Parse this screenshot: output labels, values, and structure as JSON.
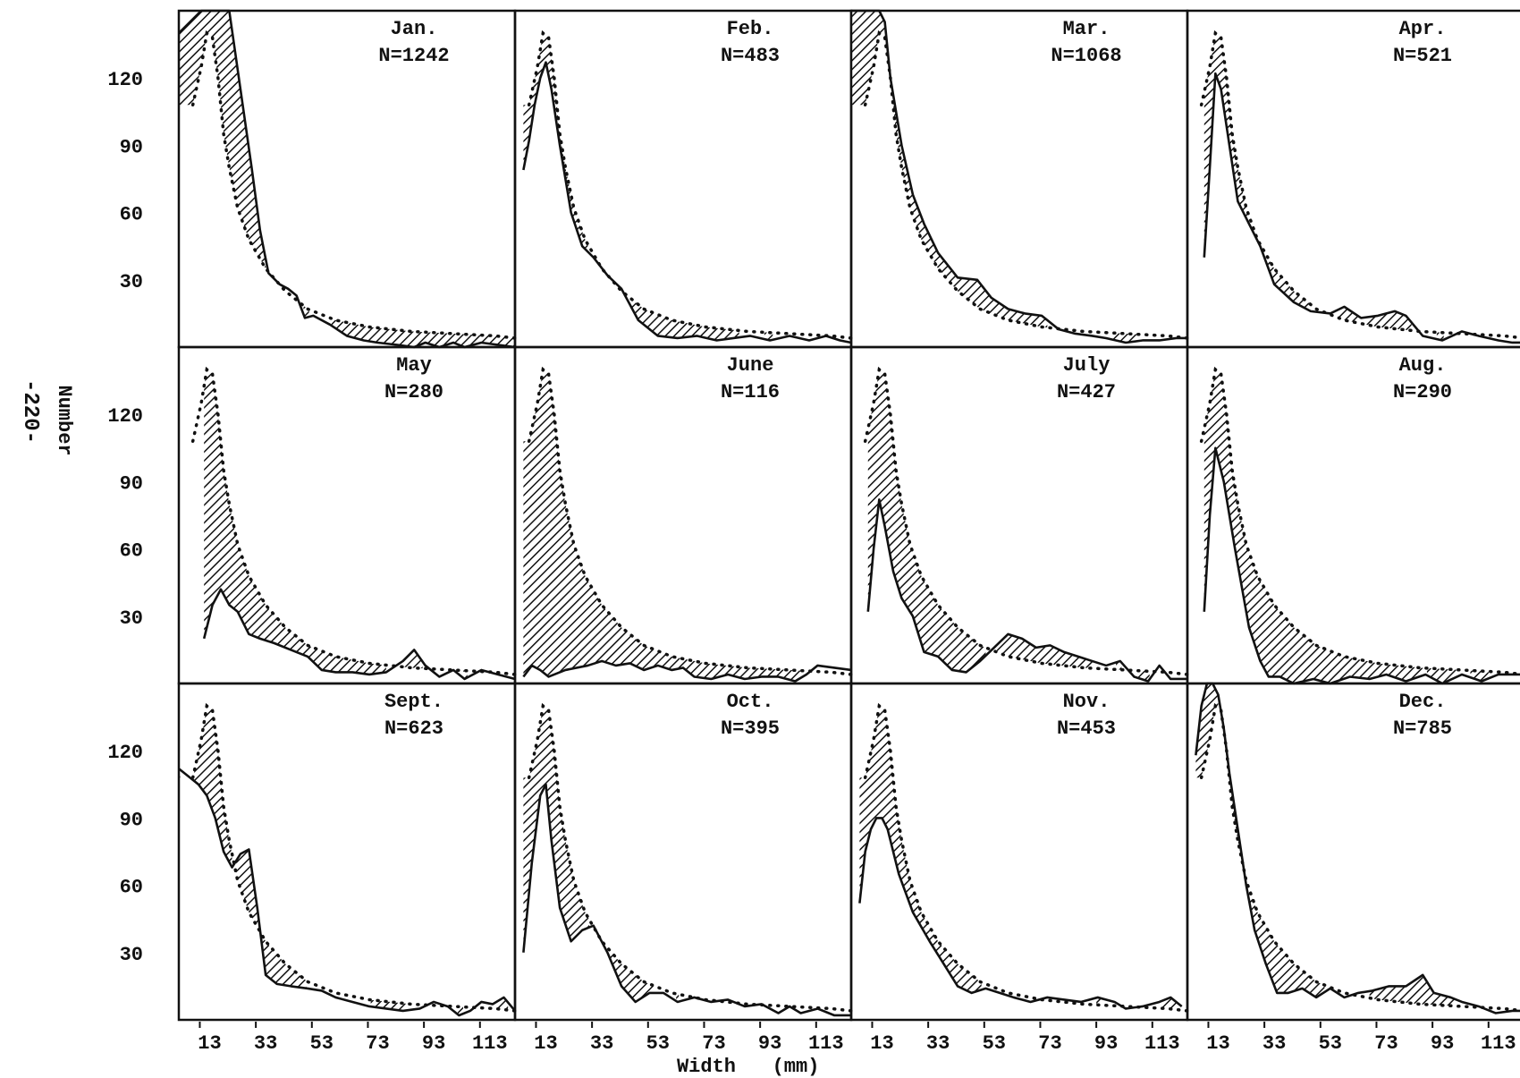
{
  "page_number": "-220-",
  "axis_labels": {
    "y": "Number",
    "x": "Width",
    "x_unit": "(mm)"
  },
  "y_ticks": [
    "30",
    "60",
    "90",
    "120"
  ],
  "x_ticks": [
    "13",
    "33",
    "53",
    "73",
    "93",
    "113"
  ],
  "chart_data": {
    "type": "line",
    "layout": "small multiples, 3 rows x 4 columns",
    "xlabel": "Width (mm)",
    "ylabel": "Number",
    "ylim": [
      0,
      150
    ],
    "xlim": [
      2,
      122
    ],
    "y_ticks": [
      30,
      60,
      90,
      120
    ],
    "x_ticks": [
      13,
      33,
      53,
      73,
      93,
      113
    ],
    "style": {
      "monthly": "solid line",
      "reference": "dotted line",
      "difference": "hatched area"
    },
    "reference_curve": {
      "x": [
        7,
        10,
        12,
        14,
        16,
        18,
        20,
        23,
        27,
        33,
        40,
        48,
        58,
        70,
        85,
        100,
        115,
        122
      ],
      "y": [
        108,
        125,
        140,
        138,
        120,
        95,
        80,
        62,
        48,
        35,
        25,
        17,
        12,
        9,
        7,
        6,
        5,
        4
      ]
    },
    "panels": [
      {
        "month": "Jan.",
        "n": "N=1242",
        "x": [
          2,
          6,
          10,
          14,
          17,
          20,
          24,
          28,
          31,
          34,
          38,
          41,
          44,
          47,
          50,
          56,
          62,
          68,
          73,
          80,
          86,
          90,
          95,
          100,
          104,
          110,
          116,
          122
        ],
        "y": [
          140,
          145,
          150,
          150,
          150,
          150,
          115,
          80,
          52,
          33,
          28,
          26,
          23,
          13,
          14,
          10,
          5,
          3,
          2,
          1,
          0,
          2,
          0,
          2,
          0,
          2,
          1,
          0
        ]
      },
      {
        "month": "Feb.",
        "n": "N=483",
        "x": [
          5,
          7,
          9,
          11,
          13,
          15,
          18,
          22,
          26,
          30,
          35,
          40,
          46,
          53,
          60,
          67,
          74,
          80,
          86,
          93,
          100,
          107,
          113,
          118,
          122
        ],
        "y": [
          79,
          92,
          108,
          120,
          127,
          115,
          90,
          60,
          45,
          40,
          32,
          26,
          12,
          5,
          4,
          5,
          3,
          4,
          5,
          3,
          5,
          3,
          5,
          3,
          2
        ]
      },
      {
        "month": "Mar.",
        "n": "N=1068",
        "x": [
          2,
          8,
          12,
          14,
          16,
          20,
          24,
          28,
          33,
          40,
          47,
          52,
          58,
          64,
          70,
          76,
          82,
          88,
          93,
          100,
          106,
          112,
          118,
          122
        ],
        "y": [
          150,
          150,
          150,
          145,
          120,
          90,
          68,
          55,
          42,
          31,
          30,
          22,
          17,
          15,
          14,
          8,
          6,
          5,
          4,
          2,
          3,
          3,
          4,
          4
        ]
      },
      {
        "month": "Apr.",
        "n": "N=521",
        "x": [
          8,
          10,
          12,
          14,
          17,
          20,
          24,
          28,
          33,
          40,
          46,
          53,
          58,
          64,
          70,
          76,
          80,
          86,
          93,
          100,
          106,
          113,
          118,
          122
        ],
        "y": [
          40,
          80,
          122,
          115,
          90,
          65,
          55,
          45,
          28,
          20,
          16,
          15,
          18,
          13,
          14,
          16,
          14,
          5,
          3,
          7,
          5,
          3,
          2,
          2
        ]
      },
      {
        "month": "May",
        "n": "N=280",
        "x": [
          11,
          14,
          17,
          20,
          23,
          27,
          31,
          36,
          42,
          48,
          53,
          58,
          64,
          70,
          76,
          82,
          86,
          90,
          95,
          100,
          104,
          110,
          116,
          122
        ],
        "y": [
          20,
          35,
          42,
          35,
          32,
          22,
          20,
          18,
          15,
          12,
          6,
          5,
          5,
          4,
          5,
          10,
          15,
          8,
          3,
          6,
          2,
          6,
          4,
          2
        ]
      },
      {
        "month": "June",
        "n": "N=116",
        "x": [
          5,
          8,
          11,
          14,
          20,
          28,
          33,
          38,
          43,
          48,
          53,
          58,
          62,
          66,
          72,
          78,
          84,
          90,
          96,
          102,
          106,
          110,
          116,
          122
        ],
        "y": [
          3,
          8,
          6,
          3,
          6,
          8,
          10,
          8,
          9,
          6,
          8,
          6,
          7,
          3,
          2,
          4,
          2,
          3,
          3,
          1,
          4,
          8,
          7,
          6
        ]
      },
      {
        "month": "July",
        "n": "N=427",
        "x": [
          8,
          10,
          12,
          14,
          17,
          20,
          24,
          28,
          33,
          38,
          43,
          48,
          53,
          58,
          63,
          68,
          73,
          78,
          83,
          88,
          93,
          98,
          103,
          108,
          112,
          116,
          122
        ],
        "y": [
          32,
          60,
          82,
          70,
          50,
          38,
          30,
          14,
          12,
          6,
          5,
          10,
          16,
          22,
          20,
          16,
          17,
          14,
          12,
          10,
          8,
          10,
          3,
          1,
          8,
          2,
          2
        ]
      },
      {
        "month": "Aug.",
        "n": "N=290",
        "x": [
          8,
          10,
          12,
          15,
          19,
          24,
          28,
          31,
          35,
          40,
          47,
          53,
          60,
          67,
          73,
          80,
          87,
          93,
          100,
          107,
          113,
          118,
          122
        ],
        "y": [
          32,
          75,
          105,
          90,
          60,
          25,
          10,
          3,
          3,
          0,
          2,
          0,
          3,
          2,
          4,
          1,
          4,
          0,
          4,
          1,
          4,
          4,
          4
        ]
      },
      {
        "month": "Sept.",
        "n": "N=623",
        "x": [
          2,
          6,
          9,
          12,
          15,
          18,
          21,
          24,
          27,
          30,
          33,
          37,
          42,
          48,
          53,
          58,
          64,
          70,
          76,
          82,
          88,
          93,
          98,
          102,
          106,
          110,
          114,
          118,
          122
        ],
        "y": [
          112,
          108,
          105,
          100,
          90,
          75,
          68,
          74,
          76,
          50,
          20,
          16,
          15,
          14,
          13,
          10,
          8,
          6,
          5,
          4,
          5,
          8,
          6,
          2,
          4,
          8,
          7,
          10,
          4
        ]
      },
      {
        "month": "Oct.",
        "n": "N=395",
        "x": [
          5,
          8,
          11,
          13,
          15,
          18,
          22,
          26,
          30,
          35,
          40,
          45,
          50,
          55,
          60,
          66,
          72,
          78,
          84,
          90,
          96,
          100,
          104,
          110,
          116,
          122
        ],
        "y": [
          30,
          70,
          100,
          105,
          80,
          50,
          35,
          40,
          42,
          30,
          15,
          8,
          12,
          12,
          8,
          10,
          8,
          9,
          6,
          7,
          3,
          6,
          3,
          5,
          2,
          2
        ]
      },
      {
        "month": "Nov.",
        "n": "N=453",
        "x": [
          5,
          7,
          9,
          11,
          13,
          15,
          19,
          24,
          30,
          35,
          40,
          45,
          50,
          55,
          60,
          66,
          72,
          78,
          84,
          90,
          96,
          100,
          106,
          112,
          116,
          120
        ],
        "y": [
          52,
          75,
          85,
          90,
          90,
          85,
          65,
          48,
          35,
          25,
          15,
          12,
          14,
          12,
          10,
          8,
          10,
          9,
          8,
          10,
          8,
          5,
          6,
          8,
          10,
          6
        ]
      },
      {
        "month": "Dec.",
        "n": "N=785",
        "x": [
          5,
          7,
          9,
          11,
          13,
          15,
          17,
          20,
          23,
          26,
          30,
          34,
          38,
          43,
          48,
          53,
          58,
          63,
          68,
          74,
          80,
          86,
          90,
          96,
          100,
          106,
          112,
          118,
          122
        ],
        "y": [
          118,
          140,
          150,
          150,
          145,
          130,
          110,
          85,
          60,
          40,
          25,
          12,
          12,
          14,
          10,
          14,
          10,
          12,
          13,
          15,
          15,
          20,
          12,
          10,
          8,
          6,
          3,
          4,
          4
        ]
      }
    ]
  }
}
